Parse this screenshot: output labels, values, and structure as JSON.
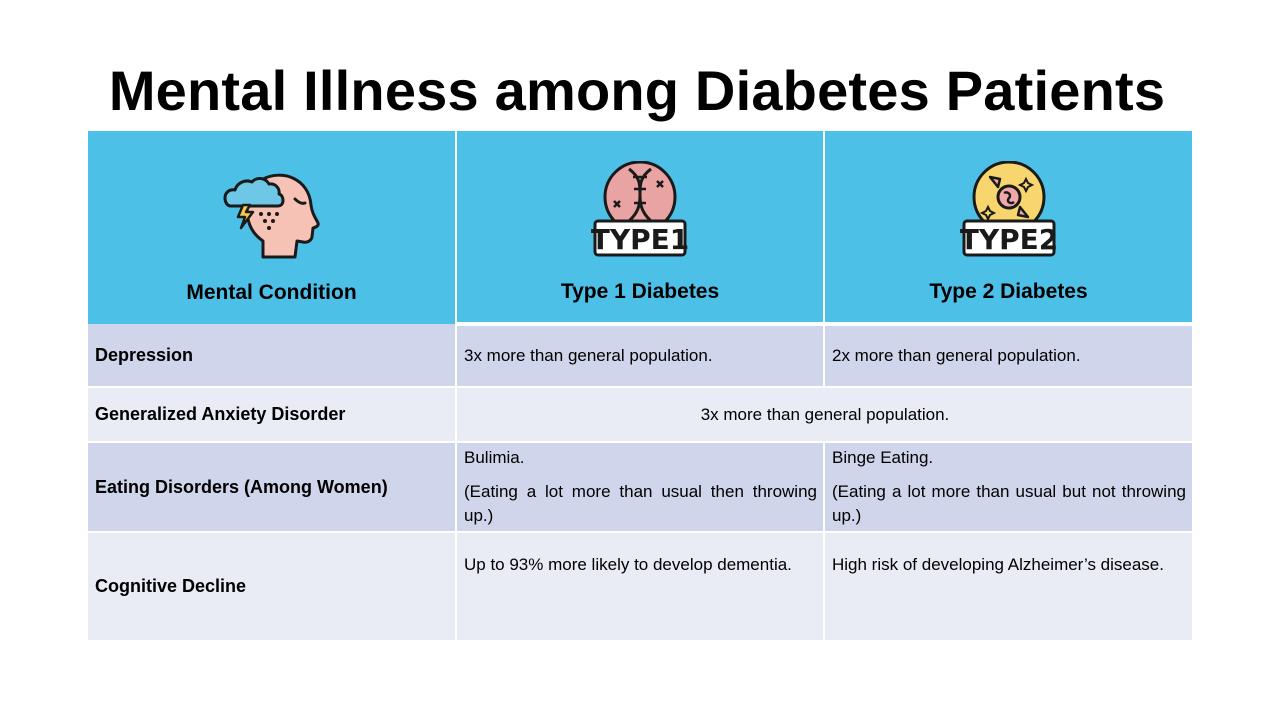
{
  "title": "Mental Illness among Diabetes Patients",
  "header": {
    "col1": "Mental Condition",
    "col2": "Type 1 Diabetes",
    "col3": "Type 2 Diabetes",
    "col1_icon": "head-storm-cloud-icon",
    "col2_icon": "dna-type1-icon",
    "col3_icon": "candy-type2-icon",
    "badge1": "TYPE1",
    "badge2": "TYPE2"
  },
  "rows": [
    {
      "label": "Depression",
      "type1": "3x more than general population.",
      "type2": "2x more than general population."
    },
    {
      "label": "Generalized Anxiety Disorder",
      "both": "3x more than general population."
    },
    {
      "label": "Eating Disorders (Among Women)",
      "type1_a": "Bulimia.",
      "type1_b": "(Eating a lot more than usual then throwing up.)",
      "type2_a": "Binge Eating.",
      "type2_b": "(Eating a lot more than usual but not throwing up.)"
    },
    {
      "label": "Cognitive Decline",
      "type1": "Up to 93% more likely to develop dementia.",
      "type2": "High risk of developing Alzheimer’s disease."
    }
  ],
  "colors": {
    "header_bg": "#4dc0e8",
    "row_dark": "#cfd5ea",
    "row_light": "#e9ebf5"
  }
}
